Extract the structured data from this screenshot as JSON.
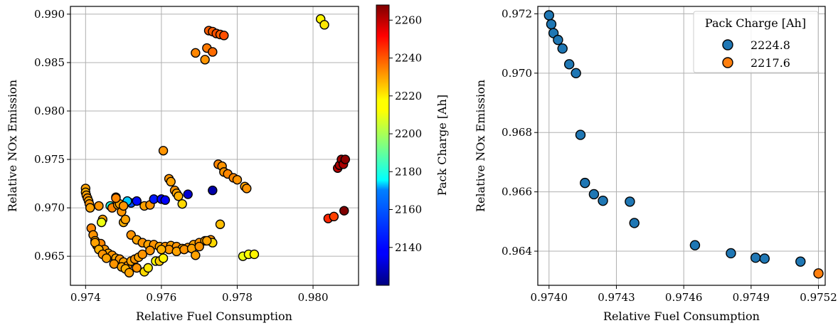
{
  "chart_data": [
    {
      "type": "scatter",
      "xlabel": "Relative Fuel Consumption",
      "ylabel": "Relative NOx Emission",
      "xlim": [
        0.9736,
        0.9812
      ],
      "ylim": [
        0.962,
        0.9908
      ],
      "xticks": [
        0.974,
        0.976,
        0.978,
        0.98
      ],
      "xtick_labels": [
        "0.974",
        "0.976",
        "0.978",
        "0.980"
      ],
      "yticks": [
        0.965,
        0.97,
        0.975,
        0.98,
        0.985,
        0.99
      ],
      "ytick_labels": [
        "0.965",
        "0.970",
        "0.975",
        "0.980",
        "0.985",
        "0.990"
      ],
      "grid": true,
      "colorbar": {
        "label": "Pack Charge [Ah]",
        "colormap": "jet",
        "range": [
          2120,
          2268
        ],
        "ticks": [
          2140,
          2160,
          2180,
          2200,
          2220,
          2240,
          2260
        ],
        "tick_labels": [
          "2140",
          "2160",
          "2180",
          "2200",
          "2220",
          "2240",
          "2260"
        ]
      },
      "points": [
        [
          0.974,
          0.972,
          2226
        ],
        [
          0.974,
          0.9716,
          2224
        ],
        [
          0.97402,
          0.9713,
          2226
        ],
        [
          0.97405,
          0.971,
          2228
        ],
        [
          0.97408,
          0.9707,
          2226
        ],
        [
          0.9741,
          0.9704,
          2228
        ],
        [
          0.97412,
          0.97,
          2226
        ],
        [
          0.97435,
          0.9702,
          2228
        ],
        [
          0.97445,
          0.9688,
          2226
        ],
        [
          0.97442,
          0.9685,
          2210
        ],
        [
          0.97465,
          0.9702,
          2180
        ],
        [
          0.9747,
          0.97,
          2230
        ],
        [
          0.9748,
          0.9711,
          2228
        ],
        [
          0.97485,
          0.9703,
          2226
        ],
        [
          0.97495,
          0.9696,
          2228
        ],
        [
          0.9749,
          0.9704,
          2226
        ],
        [
          0.975,
          0.9685,
          2224
        ],
        [
          0.97505,
          0.9688,
          2226
        ],
        [
          0.9752,
          0.9705,
          2150
        ],
        [
          0.9751,
          0.9707,
          2168
        ],
        [
          0.97535,
          0.9707,
          2140
        ],
        [
          0.97555,
          0.9702,
          2226
        ],
        [
          0.9757,
          0.9703,
          2228
        ],
        [
          0.9758,
          0.9709,
          2142
        ],
        [
          0.976,
          0.9709,
          2138
        ],
        [
          0.9761,
          0.9708,
          2138
        ],
        [
          0.97605,
          0.9759,
          2228
        ],
        [
          0.9762,
          0.973,
          2228
        ],
        [
          0.97625,
          0.9727,
          2226
        ],
        [
          0.97635,
          0.9718,
          2228
        ],
        [
          0.9764,
          0.9715,
          2226
        ],
        [
          0.97645,
          0.9712,
          2224
        ],
        [
          0.97655,
          0.9704,
          2218
        ],
        [
          0.9767,
          0.9714,
          2132
        ],
        [
          0.97735,
          0.9718,
          2126
        ],
        [
          0.9775,
          0.9745,
          2230
        ],
        [
          0.9776,
          0.9743,
          2228
        ],
        [
          0.97765,
          0.9737,
          2228
        ],
        [
          0.97775,
          0.9735,
          2230
        ],
        [
          0.9779,
          0.9731,
          2230
        ],
        [
          0.978,
          0.9729,
          2228
        ],
        [
          0.9782,
          0.9722,
          2226
        ],
        [
          0.97825,
          0.972,
          2228
        ],
        [
          0.97755,
          0.9683,
          2222
        ],
        [
          0.97815,
          0.965,
          2210
        ],
        [
          0.9783,
          0.9652,
          2212
        ],
        [
          0.97845,
          0.9652,
          2214
        ],
        [
          0.9769,
          0.986,
          2230
        ],
        [
          0.97715,
          0.9853,
          2228
        ],
        [
          0.9772,
          0.9865,
          2232
        ],
        [
          0.97735,
          0.9861,
          2234
        ],
        [
          0.97725,
          0.9883,
          2236
        ],
        [
          0.97735,
          0.9882,
          2236
        ],
        [
          0.97745,
          0.988,
          2238
        ],
        [
          0.97755,
          0.9879,
          2236
        ],
        [
          0.97765,
          0.9878,
          2238
        ],
        [
          0.9802,
          0.9895,
          2214
        ],
        [
          0.9803,
          0.9889,
          2216
        ],
        [
          0.9804,
          0.9689,
          2244
        ],
        [
          0.98055,
          0.9691,
          2240
        ],
        [
          0.98065,
          0.9741,
          2260
        ],
        [
          0.9807,
          0.9744,
          2262
        ],
        [
          0.98075,
          0.975,
          2264
        ],
        [
          0.9808,
          0.9745,
          2262
        ],
        [
          0.98085,
          0.975,
          2266
        ],
        [
          0.98082,
          0.9697,
          2268
        ],
        [
          0.97415,
          0.9679,
          2230
        ],
        [
          0.9742,
          0.9672,
          2228
        ],
        [
          0.97425,
          0.9666,
          2226
        ],
        [
          0.9743,
          0.9661,
          2228
        ],
        [
          0.9744,
          0.9663,
          2230
        ],
        [
          0.9745,
          0.9657,
          2228
        ],
        [
          0.9746,
          0.9653,
          2226
        ],
        [
          0.9747,
          0.9651,
          2228
        ],
        [
          0.9748,
          0.9648,
          2226
        ],
        [
          0.9749,
          0.9647,
          2228
        ],
        [
          0.975,
          0.9644,
          2226
        ],
        [
          0.9751,
          0.964,
          2228
        ],
        [
          0.9752,
          0.9645,
          2226
        ],
        [
          0.9753,
          0.9647,
          2228
        ],
        [
          0.9754,
          0.9649,
          2226
        ],
        [
          0.9755,
          0.9652,
          2228
        ],
        [
          0.97425,
          0.9664,
          2226
        ],
        [
          0.97435,
          0.9657,
          2224
        ],
        [
          0.97445,
          0.9652,
          2228
        ],
        [
          0.97455,
          0.9648,
          2226
        ],
        [
          0.97475,
          0.9642,
          2228
        ],
        [
          0.97495,
          0.9639,
          2226
        ],
        [
          0.97505,
          0.9637,
          2224
        ],
        [
          0.97515,
          0.9633,
          2226
        ],
        [
          0.97535,
          0.9638,
          2228
        ],
        [
          0.97555,
          0.9634,
          2218
        ],
        [
          0.97565,
          0.9638,
          2216
        ],
        [
          0.97585,
          0.9645,
          2212
        ],
        [
          0.97595,
          0.9645,
          2220
        ],
        [
          0.97605,
          0.9648,
          2214
        ],
        [
          0.9752,
          0.9672,
          2228
        ],
        [
          0.97535,
          0.9667,
          2226
        ],
        [
          0.9755,
          0.9664,
          2228
        ],
        [
          0.97565,
          0.9662,
          2226
        ],
        [
          0.9758,
          0.9662,
          2228
        ],
        [
          0.97595,
          0.966,
          2226
        ],
        [
          0.9761,
          0.966,
          2228
        ],
        [
          0.97625,
          0.9661,
          2226
        ],
        [
          0.9764,
          0.966,
          2228
        ],
        [
          0.97655,
          0.9658,
          2226
        ],
        [
          0.9767,
          0.9659,
          2228
        ],
        [
          0.97685,
          0.9662,
          2226
        ],
        [
          0.977,
          0.9664,
          2228
        ],
        [
          0.97715,
          0.9666,
          2226
        ],
        [
          0.9773,
          0.9667,
          2228
        ],
        [
          0.97735,
          0.9664,
          2218
        ],
        [
          0.9772,
          0.9666,
          2226
        ],
        [
          0.9762,
          0.9657,
          2228
        ],
        [
          0.9764,
          0.9655,
          2226
        ],
        [
          0.9766,
          0.9657,
          2228
        ],
        [
          0.9768,
          0.9658,
          2226
        ],
        [
          0.977,
          0.966,
          2228
        ],
        [
          0.9769,
          0.9651,
          2226
        ],
        [
          0.9757,
          0.9656,
          2228
        ],
        [
          0.976,
          0.9657,
          2224
        ],
        [
          0.9748,
          0.971,
          2230
        ],
        [
          0.975,
          0.9702,
          2228
        ]
      ]
    },
    {
      "type": "scatter",
      "xlabel": "Relative Fuel Consumption",
      "ylabel": "Relative NOx Emission",
      "xlim": [
        0.97395,
        0.97523
      ],
      "ylim": [
        0.96285,
        0.97225
      ],
      "xticks": [
        0.974,
        0.9743,
        0.9746,
        0.9749,
        0.9752
      ],
      "xtick_labels": [
        "0.9740",
        "0.9743",
        "0.9746",
        "0.9749",
        "0.9752"
      ],
      "yticks": [
        0.964,
        0.966,
        0.968,
        0.97,
        0.972
      ],
      "ytick_labels": [
        "0.964",
        "0.966",
        "0.968",
        "0.970",
        "0.972"
      ],
      "grid": true,
      "legend": {
        "title": "Pack Charge [Ah]",
        "placement": "top-right",
        "entries": [
          {
            "label": "2224.8",
            "color": "#1f77b4"
          },
          {
            "label": "2217.6",
            "color": "#ff7f0e"
          }
        ]
      },
      "series": [
        {
          "name": "2224.8",
          "color": "#1f77b4",
          "x": [
            0.974,
            0.97401,
            0.97402,
            0.97404,
            0.97406,
            0.97409,
            0.97412,
            0.97414,
            0.97416,
            0.9742,
            0.97424,
            0.97436,
            0.97438,
            0.97465,
            0.97481,
            0.97492,
            0.97496,
            0.97512
          ],
          "y": [
            0.97195,
            0.97165,
            0.97135,
            0.97112,
            0.97083,
            0.9703,
            0.97,
            0.96792,
            0.9663,
            0.96592,
            0.9657,
            0.96567,
            0.96495,
            0.9642,
            0.96393,
            0.96378,
            0.96375,
            0.96365
          ]
        },
        {
          "name": "2217.6",
          "color": "#ff7f0e",
          "x": [
            0.9752
          ],
          "y": [
            0.96325
          ]
        }
      ]
    }
  ]
}
